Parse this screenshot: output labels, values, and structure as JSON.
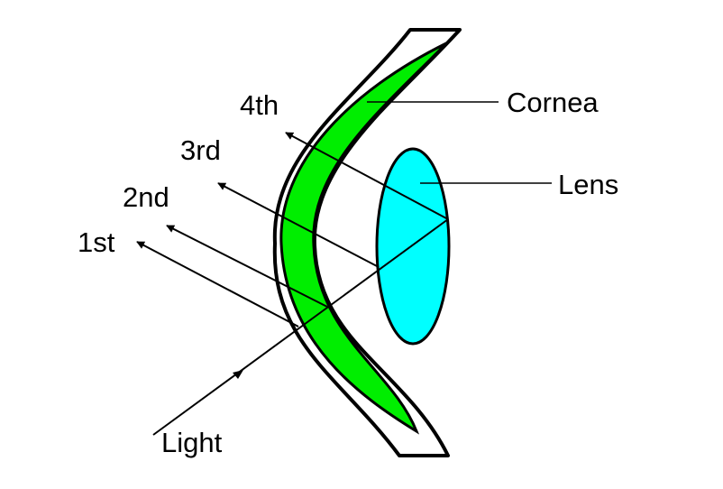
{
  "labels": {
    "cornea": "Cornea",
    "lens": "Lens",
    "light": "Light",
    "reflections": [
      "1st",
      "2nd",
      "3rd",
      "4th"
    ]
  },
  "colors": {
    "cornea_fill": "#00ee00",
    "lens_fill": "#00ffff",
    "outline": "#000000",
    "background": "#ffffff"
  }
}
